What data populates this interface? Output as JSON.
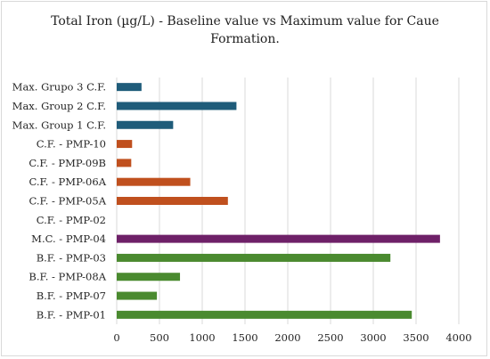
{
  "chart_data": {
    "type": "bar",
    "orientation": "horizontal",
    "title_line1": "Total Iron (µg/L) - Baseline value vs  Maximum value for Caue",
    "title_line2": "Formation.",
    "categories": [
      "Max. Grupo 3 C.F.",
      "Max. Group 2 C.F.",
      "Max. Group 1 C.F.",
      "C.F. - PMP-10",
      "C.F. - PMP-09B",
      "C.F. - PMP-06A",
      "C.F. - PMP-05A",
      "C.F. - PMP-02",
      "M.C. - PMP-04",
      "B.F. - PMP-03",
      "B.F. - PMP-08A",
      "B.F. - PMP-07",
      "B.F. - PMP-01"
    ],
    "values": [
      290,
      1400,
      660,
      180,
      170,
      860,
      1300,
      0,
      3780,
      3200,
      740,
      470,
      3450
    ],
    "colors": [
      "#1f5c7a",
      "#1f5c7a",
      "#1f5c7a",
      "#c0501e",
      "#c0501e",
      "#c0501e",
      "#c0501e",
      "#c0501e",
      "#6e2068",
      "#4a8a2f",
      "#4a8a2f",
      "#4a8a2f",
      "#4a8a2f"
    ],
    "xlim": [
      0,
      4000
    ],
    "xticks": [
      "0",
      "500",
      "1000",
      "1500",
      "2000",
      "2500",
      "3000",
      "3500",
      "4000"
    ],
    "grid": true
  }
}
